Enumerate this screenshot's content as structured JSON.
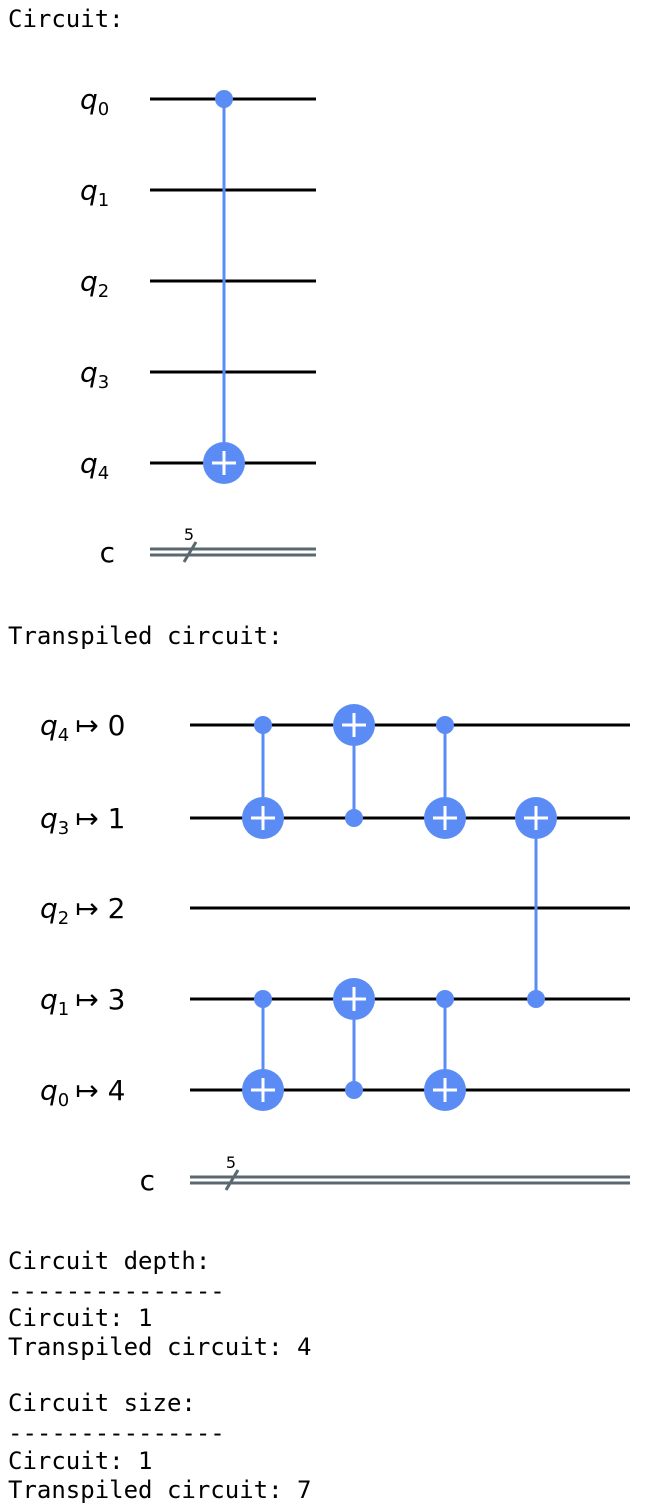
{
  "section1": {
    "title": "Circuit:"
  },
  "section2": {
    "title": "Transpiled circuit:"
  },
  "circuit1": {
    "qubits": [
      {
        "name": "q",
        "index": "0"
      },
      {
        "name": "q",
        "index": "1"
      },
      {
        "name": "q",
        "index": "2"
      },
      {
        "name": "q",
        "index": "3"
      },
      {
        "name": "q",
        "index": "4"
      }
    ],
    "creg": {
      "name": "c",
      "size": "5"
    },
    "gates": [
      {
        "control": 0,
        "target": 4
      }
    ]
  },
  "circuit2": {
    "wires": [
      {
        "name": "q",
        "index": "4",
        "arrow": "↦",
        "phys": "0"
      },
      {
        "name": "q",
        "index": "3",
        "arrow": "↦",
        "phys": "1"
      },
      {
        "name": "q",
        "index": "2",
        "arrow": "↦",
        "phys": "2"
      },
      {
        "name": "q",
        "index": "1",
        "arrow": "↦",
        "phys": "3"
      },
      {
        "name": "q",
        "index": "0",
        "arrow": "↦",
        "phys": "4"
      }
    ],
    "creg": {
      "name": "c",
      "size": "5"
    },
    "gates": [
      {
        "col": 0,
        "control": 0,
        "target": 1
      },
      {
        "col": 0,
        "control": 3,
        "target": 4
      },
      {
        "col": 1,
        "control": 1,
        "target": 0
      },
      {
        "col": 1,
        "control": 4,
        "target": 3
      },
      {
        "col": 2,
        "control": 0,
        "target": 1
      },
      {
        "col": 2,
        "control": 3,
        "target": 4
      },
      {
        "col": 3,
        "control": 3,
        "target": 1
      }
    ]
  },
  "depth": {
    "heading": "Circuit depth:",
    "rule": "---------------",
    "circuit": "Circuit: 1",
    "transpiled": "Transpiled circuit: 4"
  },
  "size": {
    "heading": "Circuit size:",
    "rule": "---------------",
    "circuit": "Circuit: 1",
    "transpiled": "Transpiled circuit: 7"
  },
  "colors": {
    "gate": "#5b8cf5",
    "wire": "#000000",
    "creg": "#5a6870"
  }
}
